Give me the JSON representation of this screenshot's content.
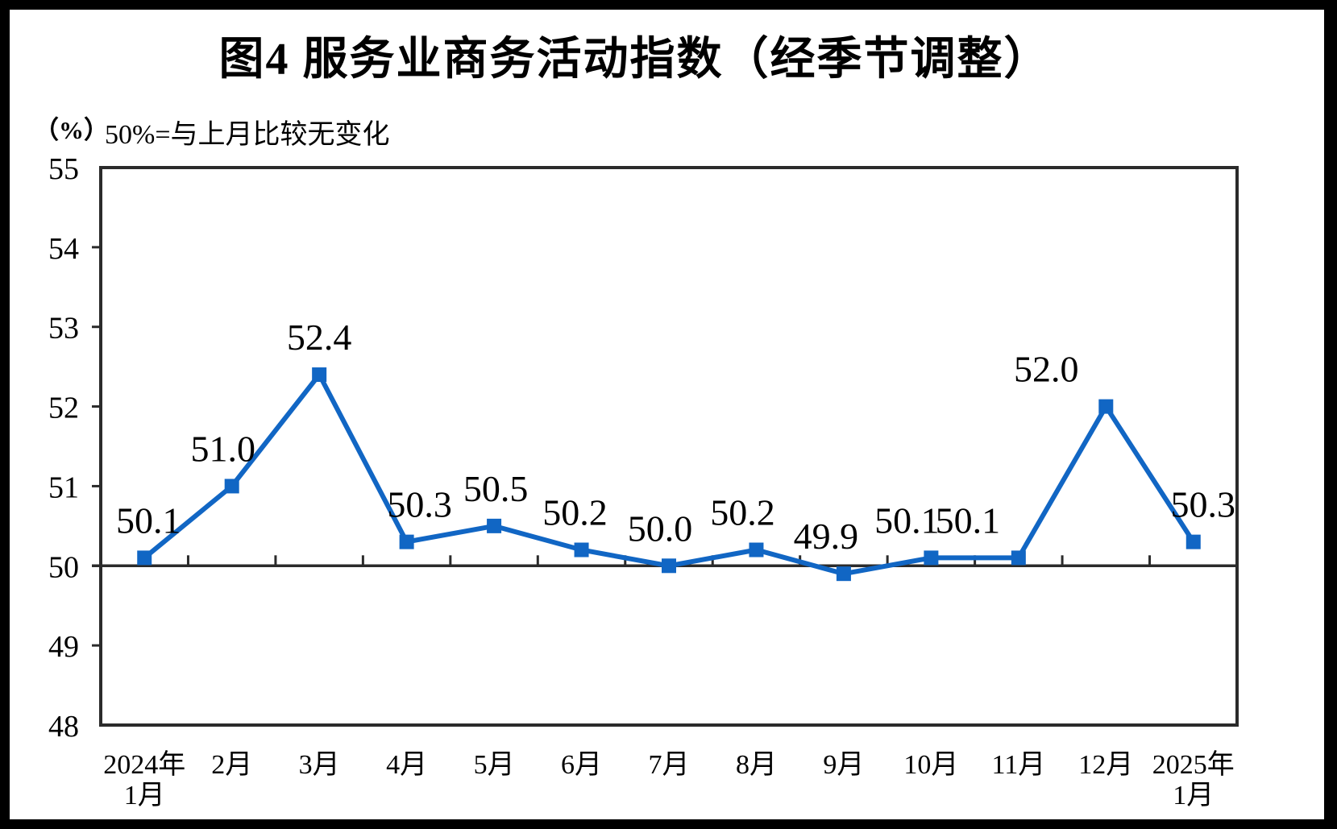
{
  "figure": {
    "title": "图4 服务业商务活动指数（经季节调整）",
    "unit_label": "（%）",
    "subtitle": "50%=与上月比较无变化"
  },
  "chart_data": {
    "type": "line",
    "title": "图4 服务业商务活动指数（经季节调整）",
    "subtitle": "50%=与上月比较无变化",
    "ylabel": "（%）",
    "categories": [
      "2024年1月",
      "2月",
      "3月",
      "4月",
      "5月",
      "6月",
      "7月",
      "8月",
      "9月",
      "10月",
      "11月",
      "12月",
      "2025年1月"
    ],
    "category_label_lines": [
      [
        "2024年",
        "1月"
      ],
      [
        "2月"
      ],
      [
        "3月"
      ],
      [
        "4月"
      ],
      [
        "5月"
      ],
      [
        "6月"
      ],
      [
        "7月"
      ],
      [
        "8月"
      ],
      [
        "9月"
      ],
      [
        "10月"
      ],
      [
        "11月"
      ],
      [
        "12月"
      ],
      [
        "2025年",
        "1月"
      ]
    ],
    "values": [
      50.1,
      51.0,
      52.4,
      50.3,
      50.5,
      50.2,
      50.0,
      50.2,
      49.9,
      50.1,
      50.1,
      52.0,
      50.3
    ],
    "data_labels": [
      "50.1",
      "51.0",
      "52.4",
      "50.3",
      "50.5",
      "50.2",
      "50.0",
      "50.2",
      "49.9",
      "50.1",
      "50.1",
      "52.0",
      "50.3"
    ],
    "ylim": [
      48,
      55
    ],
    "ytick_step": 1,
    "ytick_labels": [
      "48",
      "49",
      "50",
      "51",
      "52",
      "53",
      "54",
      "55"
    ],
    "axis_crosses_at": 50,
    "grid": false,
    "legend": "none",
    "marker": "square",
    "colors": {
      "line": "#1166C4",
      "axis": "#2b2b2b",
      "text": "#000000",
      "background": "#ffffff",
      "frame": "#000000"
    }
  }
}
